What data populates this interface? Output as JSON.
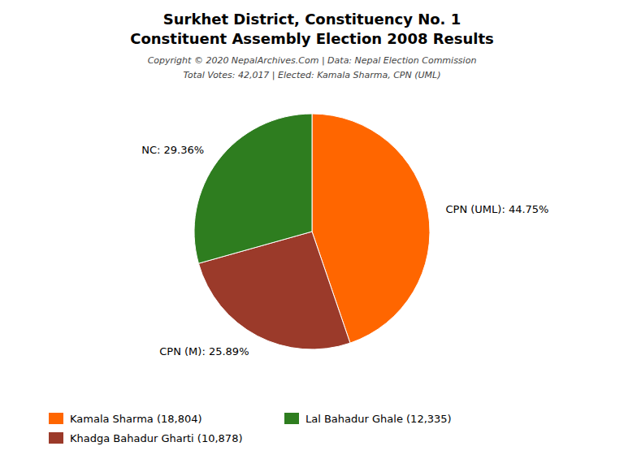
{
  "chart_data": {
    "type": "pie",
    "title": "Surkhet District, Constituency No. 1",
    "subtitle": "Constituent Assembly Election 2008 Results",
    "annotations": [
      "Copyright © 2020 NepalArchives.Com | Data: Nepal Election Commission",
      "Total Votes: 42,017 | Elected: Kamala Sharma, CPN (UML)"
    ],
    "values": [
      44.75,
      25.89,
      29.36
    ],
    "value_labels": [
      "CPN (UML): 44.75%",
      "CPN (M): 25.89%",
      "NC: 29.36%"
    ],
    "colors": [
      "#FF6600",
      "#9B3A2A",
      "#2E7D1F"
    ],
    "data_labels": true,
    "legend": "lower left",
    "legend_entries": [
      {
        "name": "Kamala Sharma (18,804)",
        "color": "#FF6600"
      },
      {
        "name": "Lal Bahadur Ghale (12,335)",
        "color": "#2E7D1F"
      },
      {
        "name": "Khadga Bahadur Gharti (10,878)",
        "color": "#9B3A2A"
      }
    ]
  }
}
